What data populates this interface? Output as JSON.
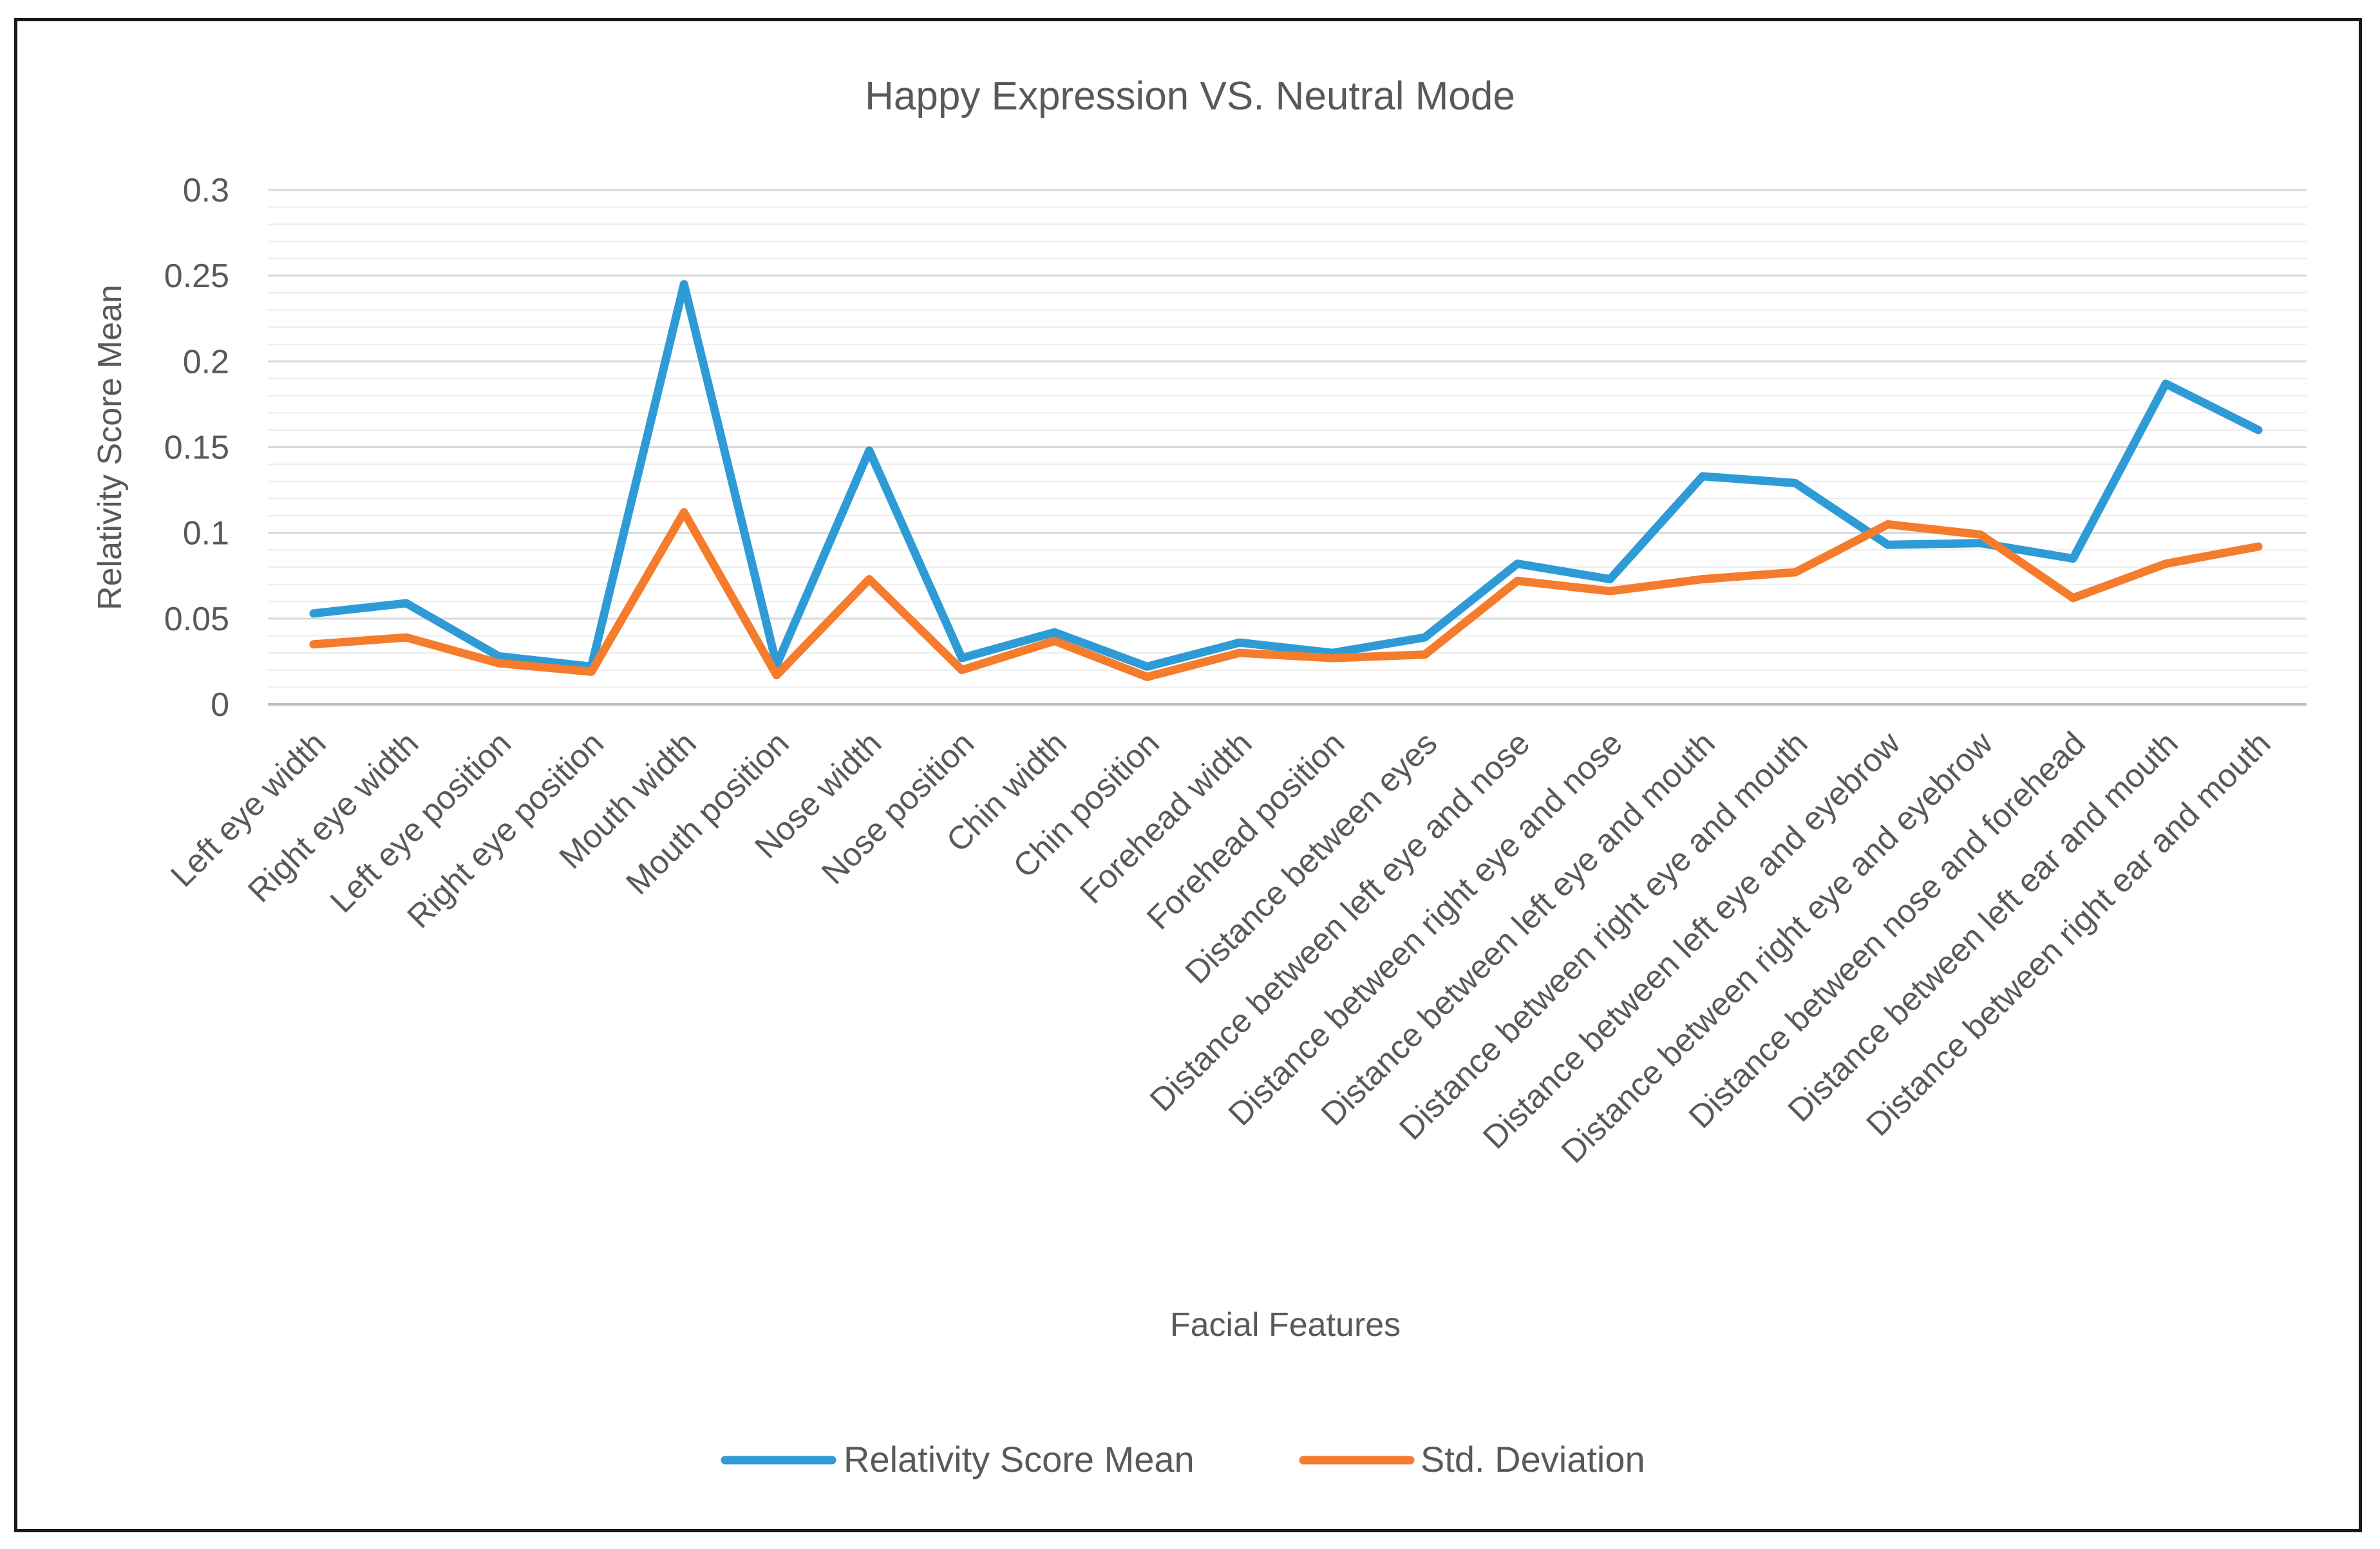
{
  "chart_data": {
    "type": "line",
    "title": "Happy Expression VS. Neutral Mode",
    "xlabel": "Facial Features",
    "ylabel": "Relativity Score Mean",
    "ylim": [
      0,
      0.3
    ],
    "yticks": [
      0,
      0.05,
      0.1,
      0.15,
      0.2,
      0.25,
      0.3
    ],
    "ytick_labels": [
      "0",
      "0.05",
      "0.1",
      "0.15",
      "0.2",
      "0.25",
      "0.3"
    ],
    "grid": true,
    "legend_position": "bottom",
    "categories": [
      "Left eye width",
      "Right eye width",
      "Left eye position",
      "Right eye position",
      "Mouth width",
      "Mouth position",
      "Nose width",
      "Nose position",
      "Chin width",
      "Chin position",
      "Forehead width",
      "Forehead position",
      "Distance between eyes",
      "Distance between left eye and nose",
      "Distance between right eye and nose",
      "Distance between left eye and mouth",
      "Distance between right eye and mouth",
      "Distance between left eye and eyebrow",
      "Distance between right eye and eyebrow",
      "Distance between nose and forehead",
      "Distance between left ear and mouth",
      "Distance between right ear and mouth"
    ],
    "series": [
      {
        "name": "Relativity Score Mean",
        "color": "#2E9BD6",
        "values": [
          0.053,
          0.059,
          0.028,
          0.022,
          0.245,
          0.023,
          0.148,
          0.027,
          0.042,
          0.022,
          0.036,
          0.03,
          0.039,
          0.082,
          0.073,
          0.133,
          0.129,
          0.093,
          0.094,
          0.085,
          0.187,
          0.16
        ]
      },
      {
        "name": "Std. Deviation",
        "color": "#F47C2C",
        "values": [
          0.035,
          0.039,
          0.024,
          0.019,
          0.112,
          0.017,
          0.073,
          0.02,
          0.037,
          0.016,
          0.03,
          0.027,
          0.029,
          0.072,
          0.066,
          0.073,
          0.077,
          0.105,
          0.099,
          0.062,
          0.082,
          0.092
        ]
      }
    ]
  }
}
